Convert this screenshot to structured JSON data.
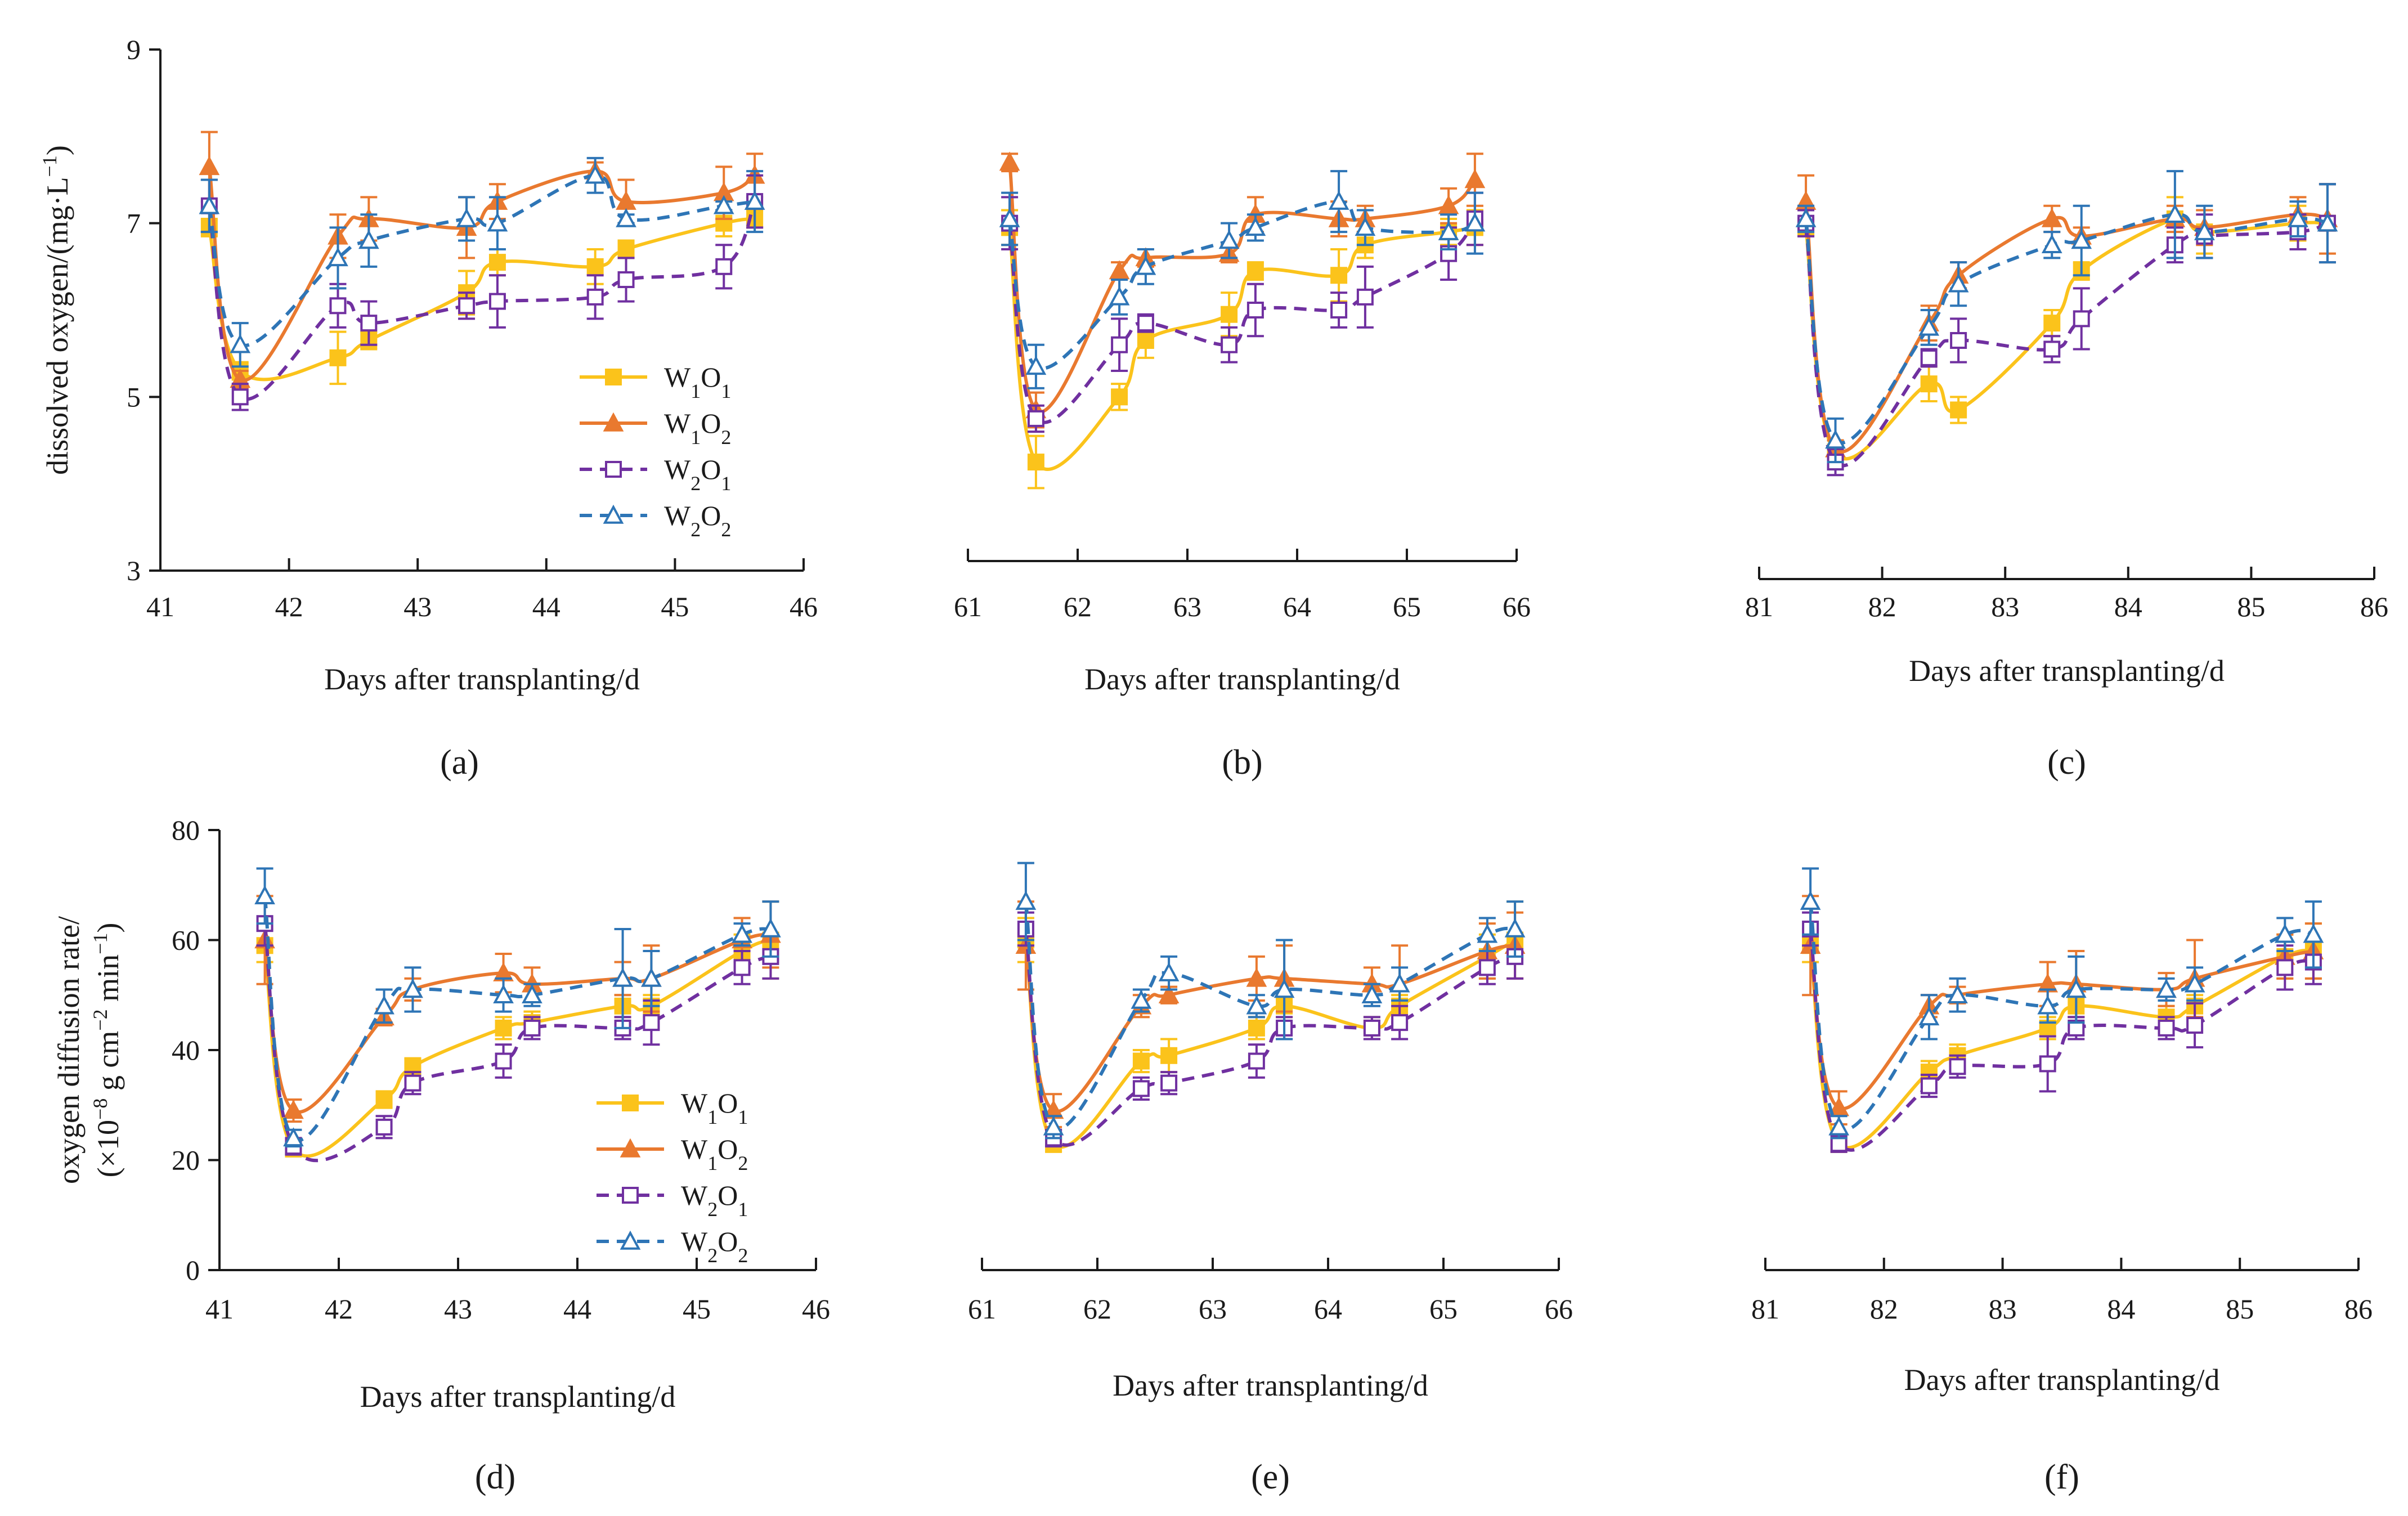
{
  "figure": {
    "x_title": "Days after transplanting/d",
    "legend": [
      "W1O1",
      "W1O2",
      "W2O1",
      "W2O2"
    ],
    "series_styles": {
      "W1O1": {
        "color": "#FBC31B",
        "marker": "square",
        "dash": false,
        "filled": true
      },
      "W1O2": {
        "color": "#E9792F",
        "marker": "triangle",
        "dash": false,
        "filled": true
      },
      "W2O1": {
        "color": "#7030A0",
        "marker": "square",
        "dash": true,
        "filled": false
      },
      "W2O2": {
        "color": "#2E75B6",
        "marker": "triangle",
        "dash": true,
        "filled": false
      }
    }
  },
  "chart_data": [
    {
      "panel_label": "(a)",
      "type": "line",
      "ylabel": "dissolved oxygen/(mg·L−1)",
      "xlabel": "Days after transplanting/d",
      "xlim": [
        41,
        46
      ],
      "ylim": [
        3,
        9
      ],
      "xticks": [
        41,
        42,
        43,
        44,
        45,
        46
      ],
      "yticks": [
        3,
        5,
        7,
        9
      ],
      "show_y_axis": true,
      "legend": true,
      "x": [
        41.38,
        41.62,
        42.38,
        42.62,
        43.38,
        43.62,
        44.38,
        44.62,
        45.38,
        45.62
      ],
      "series": [
        {
          "name": "W1O1",
          "values": [
            6.95,
            5.3,
            5.45,
            5.65,
            6.2,
            6.55,
            6.5,
            6.7,
            7.0,
            7.05
          ],
          "errors": [
            0.1,
            0.1,
            0.3,
            0.1,
            0.25,
            0.15,
            0.2,
            0.1,
            0.15,
            0.1
          ]
        },
        {
          "name": "W1O2",
          "values": [
            7.65,
            5.2,
            6.85,
            7.05,
            6.95,
            7.25,
            7.6,
            7.25,
            7.35,
            7.55
          ],
          "errors": [
            0.4,
            0.1,
            0.25,
            0.25,
            0.35,
            0.2,
            0.1,
            0.25,
            0.3,
            0.25
          ]
        },
        {
          "name": "W2O1",
          "values": [
            7.2,
            5.0,
            6.05,
            5.85,
            6.05,
            6.1,
            6.15,
            6.35,
            6.5,
            7.25
          ],
          "errors": [
            0.3,
            0.15,
            0.25,
            0.25,
            0.15,
            0.3,
            0.25,
            0.25,
            0.25,
            0.3
          ]
        },
        {
          "name": "W2O2",
          "values": [
            7.2,
            5.6,
            6.6,
            6.8,
            7.05,
            7.0,
            7.55,
            7.05,
            7.2,
            7.25
          ],
          "errors": [
            0.3,
            0.25,
            0.35,
            0.3,
            0.25,
            0.3,
            0.2,
            0.05,
            0.05,
            0.35
          ]
        }
      ]
    },
    {
      "panel_label": "(b)",
      "type": "line",
      "ylabel": "",
      "xlabel": "Days after transplanting/d",
      "xlim": [
        61,
        66
      ],
      "ylim": [
        3,
        9
      ],
      "xticks": [
        61,
        62,
        63,
        64,
        65,
        66
      ],
      "yticks": [],
      "show_y_axis": false,
      "legend": false,
      "x": [
        61.38,
        61.62,
        62.38,
        62.62,
        63.38,
        63.62,
        64.38,
        64.62,
        65.38,
        65.62
      ],
      "series": [
        {
          "name": "W1O1",
          "values": [
            6.95,
            4.25,
            5.0,
            5.65,
            5.95,
            6.45,
            6.4,
            6.75,
            6.9,
            6.95
          ],
          "errors": [
            0.2,
            0.3,
            0.15,
            0.2,
            0.25,
            0.1,
            0.3,
            0.15,
            0.15,
            0.2
          ]
        },
        {
          "name": "W1O2",
          "values": [
            7.7,
            4.85,
            6.45,
            6.6,
            6.65,
            7.1,
            7.05,
            7.05,
            7.2,
            7.5
          ],
          "errors": [
            0.1,
            0.2,
            0.1,
            0.1,
            0.1,
            0.2,
            0.2,
            0.15,
            0.2,
            0.3
          ]
        },
        {
          "name": "W2O1",
          "values": [
            7.0,
            4.75,
            5.6,
            5.85,
            5.6,
            6.0,
            6.0,
            6.15,
            6.65,
            7.05
          ],
          "errors": [
            0.3,
            0.15,
            0.3,
            0.1,
            0.2,
            0.3,
            0.2,
            0.35,
            0.3,
            0.3
          ]
        },
        {
          "name": "W2O2",
          "values": [
            7.05,
            5.35,
            6.15,
            6.5,
            6.8,
            6.95,
            7.25,
            6.95,
            6.9,
            7.0
          ],
          "errors": [
            0.3,
            0.25,
            0.2,
            0.2,
            0.2,
            0.15,
            0.35,
            0.2,
            0.2,
            0.35
          ]
        }
      ]
    },
    {
      "panel_label": "(c)",
      "type": "line",
      "ylabel": "",
      "xlabel": "Days after transplanting/d",
      "xlim": [
        81,
        86
      ],
      "ylim": [
        3,
        9
      ],
      "xticks": [
        81,
        82,
        83,
        84,
        85,
        86
      ],
      "yticks": [],
      "show_y_axis": false,
      "legend": false,
      "x": [
        81.38,
        81.62,
        82.38,
        82.62,
        83.38,
        83.62,
        84.38,
        84.62,
        85.38,
        85.62
      ],
      "series": [
        {
          "name": "W1O1",
          "values": [
            6.95,
            4.35,
            5.15,
            4.85,
            5.85,
            6.45,
            7.05,
            6.9,
            7.0,
            7.0
          ],
          "errors": [
            0.1,
            0.1,
            0.2,
            0.15,
            0.15,
            0.1,
            0.25,
            0.25,
            0.2,
            0.45
          ]
        },
        {
          "name": "W1O2",
          "values": [
            7.25,
            4.4,
            5.85,
            6.4,
            7.05,
            6.85,
            7.05,
            6.95,
            7.1,
            7.05
          ],
          "errors": [
            0.3,
            0.1,
            0.2,
            0.15,
            0.15,
            0.1,
            0.15,
            0.2,
            0.2,
            0.4
          ]
        },
        {
          "name": "W2O1",
          "values": [
            7.0,
            4.25,
            5.45,
            5.65,
            5.55,
            5.9,
            6.75,
            6.85,
            6.9,
            7.0
          ],
          "errors": [
            0.15,
            0.15,
            0.1,
            0.25,
            0.15,
            0.35,
            0.2,
            0.25,
            0.2,
            0.45
          ]
        },
        {
          "name": "W2O2",
          "values": [
            7.05,
            4.5,
            5.8,
            6.3,
            6.75,
            6.8,
            7.1,
            6.9,
            7.05,
            7.0
          ],
          "errors": [
            0.15,
            0.25,
            0.2,
            0.25,
            0.15,
            0.4,
            0.5,
            0.3,
            0.2,
            0.45
          ]
        }
      ]
    },
    {
      "panel_label": "(d)",
      "type": "line",
      "ylabel": "oxygen diffusion rate/",
      "ylabel2": "(×10−8 g cm−2 min−1)",
      "xlabel": "Days after transplanting/d",
      "xlim": [
        41,
        46
      ],
      "ylim": [
        0,
        80
      ],
      "xticks": [
        41,
        42,
        43,
        44,
        45,
        46
      ],
      "yticks": [
        0,
        20,
        40,
        60,
        80
      ],
      "show_y_axis": true,
      "legend": true,
      "x": [
        41.38,
        41.62,
        42.38,
        42.62,
        43.38,
        43.62,
        44.38,
        44.62,
        45.38,
        45.62
      ],
      "series": [
        {
          "name": "W1O1",
          "values": [
            59,
            22,
            31,
            37,
            44,
            45,
            48,
            48,
            58,
            60
          ],
          "errors": [
            3,
            1,
            1.5,
            1.5,
            2,
            2,
            2,
            2,
            3,
            7
          ]
        },
        {
          "name": "W1O2",
          "values": [
            60,
            29,
            46,
            51,
            54,
            52,
            53,
            53,
            60,
            61
          ],
          "errors": [
            8,
            2,
            1.5,
            2,
            3.5,
            3,
            3,
            6,
            4,
            6
          ]
        },
        {
          "name": "W2O1",
          "values": [
            63,
            22.5,
            26,
            34,
            38,
            44,
            44,
            45,
            55,
            57
          ],
          "errors": [
            4,
            1.5,
            2,
            2,
            3,
            2,
            2,
            4,
            3,
            4
          ]
        },
        {
          "name": "W2O2",
          "values": [
            68,
            24,
            48,
            51,
            50,
            50,
            53,
            53,
            61,
            62
          ],
          "errors": [
            5,
            1.5,
            3,
            4,
            3,
            2,
            9,
            5,
            2,
            5
          ]
        }
      ]
    },
    {
      "panel_label": "(e)",
      "type": "line",
      "ylabel": "",
      "xlabel": "Days after transplanting/d",
      "xlim": [
        61,
        66
      ],
      "ylim": [
        0,
        80
      ],
      "xticks": [
        61,
        62,
        63,
        64,
        65,
        66
      ],
      "yticks": [],
      "show_y_axis": false,
      "legend": false,
      "x": [
        61.38,
        61.62,
        62.38,
        62.62,
        63.38,
        63.62,
        64.38,
        64.62,
        65.38,
        65.62
      ],
      "series": [
        {
          "name": "W1O1",
          "values": [
            60,
            23,
            38,
            39,
            44,
            48,
            44,
            48,
            57,
            60
          ],
          "errors": [
            4,
            1.5,
            2,
            3,
            2,
            2,
            2,
            2,
            4,
            7
          ]
        },
        {
          "name": "W1O2",
          "values": [
            59,
            29,
            48,
            50,
            53,
            53,
            52,
            52,
            58,
            59
          ],
          "errors": [
            8,
            3,
            2,
            1.5,
            4,
            6,
            3,
            7,
            5,
            6
          ]
        },
        {
          "name": "W2O1",
          "values": [
            62,
            24,
            33,
            34,
            38,
            44,
            44,
            45,
            55,
            57
          ],
          "errors": [
            3,
            1.5,
            2,
            2,
            3,
            2,
            2,
            3,
            3,
            4
          ]
        },
        {
          "name": "W2O2",
          "values": [
            67,
            26,
            49,
            54,
            48,
            51,
            50,
            52,
            61,
            62
          ],
          "errors": [
            7,
            2,
            2,
            3,
            2,
            9,
            2,
            3,
            3,
            5
          ]
        }
      ]
    },
    {
      "panel_label": "(f)",
      "type": "line",
      "ylabel": "",
      "xlabel": "Days after transplanting/d",
      "xlim": [
        81,
        86
      ],
      "ylim": [
        0,
        80
      ],
      "xticks": [
        81,
        82,
        83,
        84,
        85,
        86
      ],
      "yticks": [],
      "show_y_axis": false,
      "legend": false,
      "x": [
        81.38,
        81.62,
        82.38,
        82.62,
        83.38,
        83.62,
        84.38,
        84.62,
        85.38,
        85.62
      ],
      "series": [
        {
          "name": "W1O1",
          "values": [
            59,
            23,
            36,
            39,
            44,
            48,
            46,
            48,
            57,
            58
          ],
          "errors": [
            3,
            1.5,
            2,
            2,
            2,
            2,
            2,
            2,
            4,
            5
          ]
        },
        {
          "name": "W1O2",
          "values": [
            59,
            29.5,
            48,
            50,
            52,
            52,
            51,
            53,
            57,
            58
          ],
          "errors": [
            9,
            3,
            2,
            1.5,
            4,
            6,
            3,
            7,
            4,
            5
          ]
        },
        {
          "name": "W2O1",
          "values": [
            62,
            23,
            33.5,
            37,
            37.5,
            44,
            44,
            44.5,
            55,
            56
          ],
          "errors": [
            3,
            1.5,
            2,
            2,
            5,
            2,
            2,
            4,
            4,
            4
          ]
        },
        {
          "name": "W2O2",
          "values": [
            67,
            26,
            46,
            50,
            48,
            51,
            51,
            52,
            61,
            61
          ],
          "errors": [
            6,
            2,
            4,
            3,
            3,
            6,
            2,
            3,
            3,
            6
          ]
        }
      ]
    }
  ]
}
